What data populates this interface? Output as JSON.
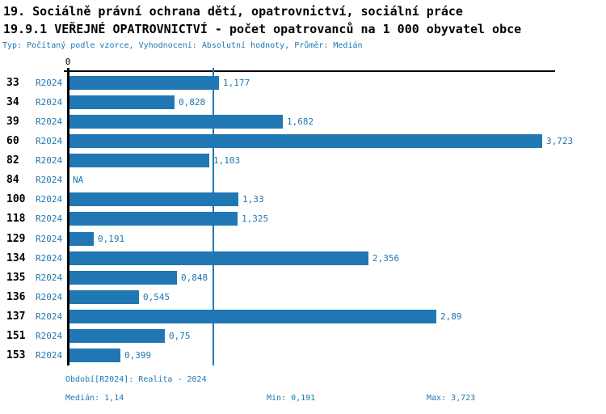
{
  "header": {
    "title_line1": "19. Sociálně právní ochrana dětí, opatrovnictví, sociální práce",
    "title_line2": "19.9.1 VEŘEJNÉ OPATROVNICTVÍ - počet opatrovanců na 1 000 obyvatel obce",
    "subtitle": "Typ: Počítaný podle vzorce, Vyhodnocení: Absolutní hodnoty, Průměr: Medián"
  },
  "chart_data": {
    "type": "bar",
    "orientation": "horizontal",
    "axis_tick_label": "0",
    "xlim": [
      0,
      3.85
    ],
    "median_line_value": 1.14,
    "grid": false,
    "series_name": "R2024",
    "categories": [
      "33",
      "34",
      "39",
      "60",
      "82",
      "84",
      "100",
      "118",
      "129",
      "134",
      "135",
      "136",
      "137",
      "151",
      "153"
    ],
    "rows": [
      {
        "id": "33",
        "period": "R2024",
        "value": 1.177,
        "label": "1,177"
      },
      {
        "id": "34",
        "period": "R2024",
        "value": 0.828,
        "label": "0,828"
      },
      {
        "id": "39",
        "period": "R2024",
        "value": 1.682,
        "label": "1,682"
      },
      {
        "id": "60",
        "period": "R2024",
        "value": 3.723,
        "label": "3,723"
      },
      {
        "id": "82",
        "period": "R2024",
        "value": 1.103,
        "label": "1,103"
      },
      {
        "id": "84",
        "period": "R2024",
        "value": null,
        "label": "NA"
      },
      {
        "id": "100",
        "period": "R2024",
        "value": 1.33,
        "label": "1,33"
      },
      {
        "id": "118",
        "period": "R2024",
        "value": 1.325,
        "label": "1,325"
      },
      {
        "id": "129",
        "period": "R2024",
        "value": 0.191,
        "label": "0,191"
      },
      {
        "id": "134",
        "period": "R2024",
        "value": 2.356,
        "label": "2,356"
      },
      {
        "id": "135",
        "period": "R2024",
        "value": 0.848,
        "label": "0,848"
      },
      {
        "id": "136",
        "period": "R2024",
        "value": 0.545,
        "label": "0,545"
      },
      {
        "id": "137",
        "period": "R2024",
        "value": 2.89,
        "label": "2,89"
      },
      {
        "id": "151",
        "period": "R2024",
        "value": 0.75,
        "label": "0,75"
      },
      {
        "id": "153",
        "period": "R2024",
        "value": 0.399,
        "label": "0,399"
      }
    ]
  },
  "footer": {
    "period": "Období[R2024]: Realita - 2024",
    "median": "Medián: 1,14",
    "min": "Min: 0,191",
    "max": "Max: 3,723"
  },
  "colors": {
    "bar_blue": "#2077b4",
    "text_blue": "#1f77b4",
    "ink": "#000000",
    "background": "#ffffff"
  }
}
